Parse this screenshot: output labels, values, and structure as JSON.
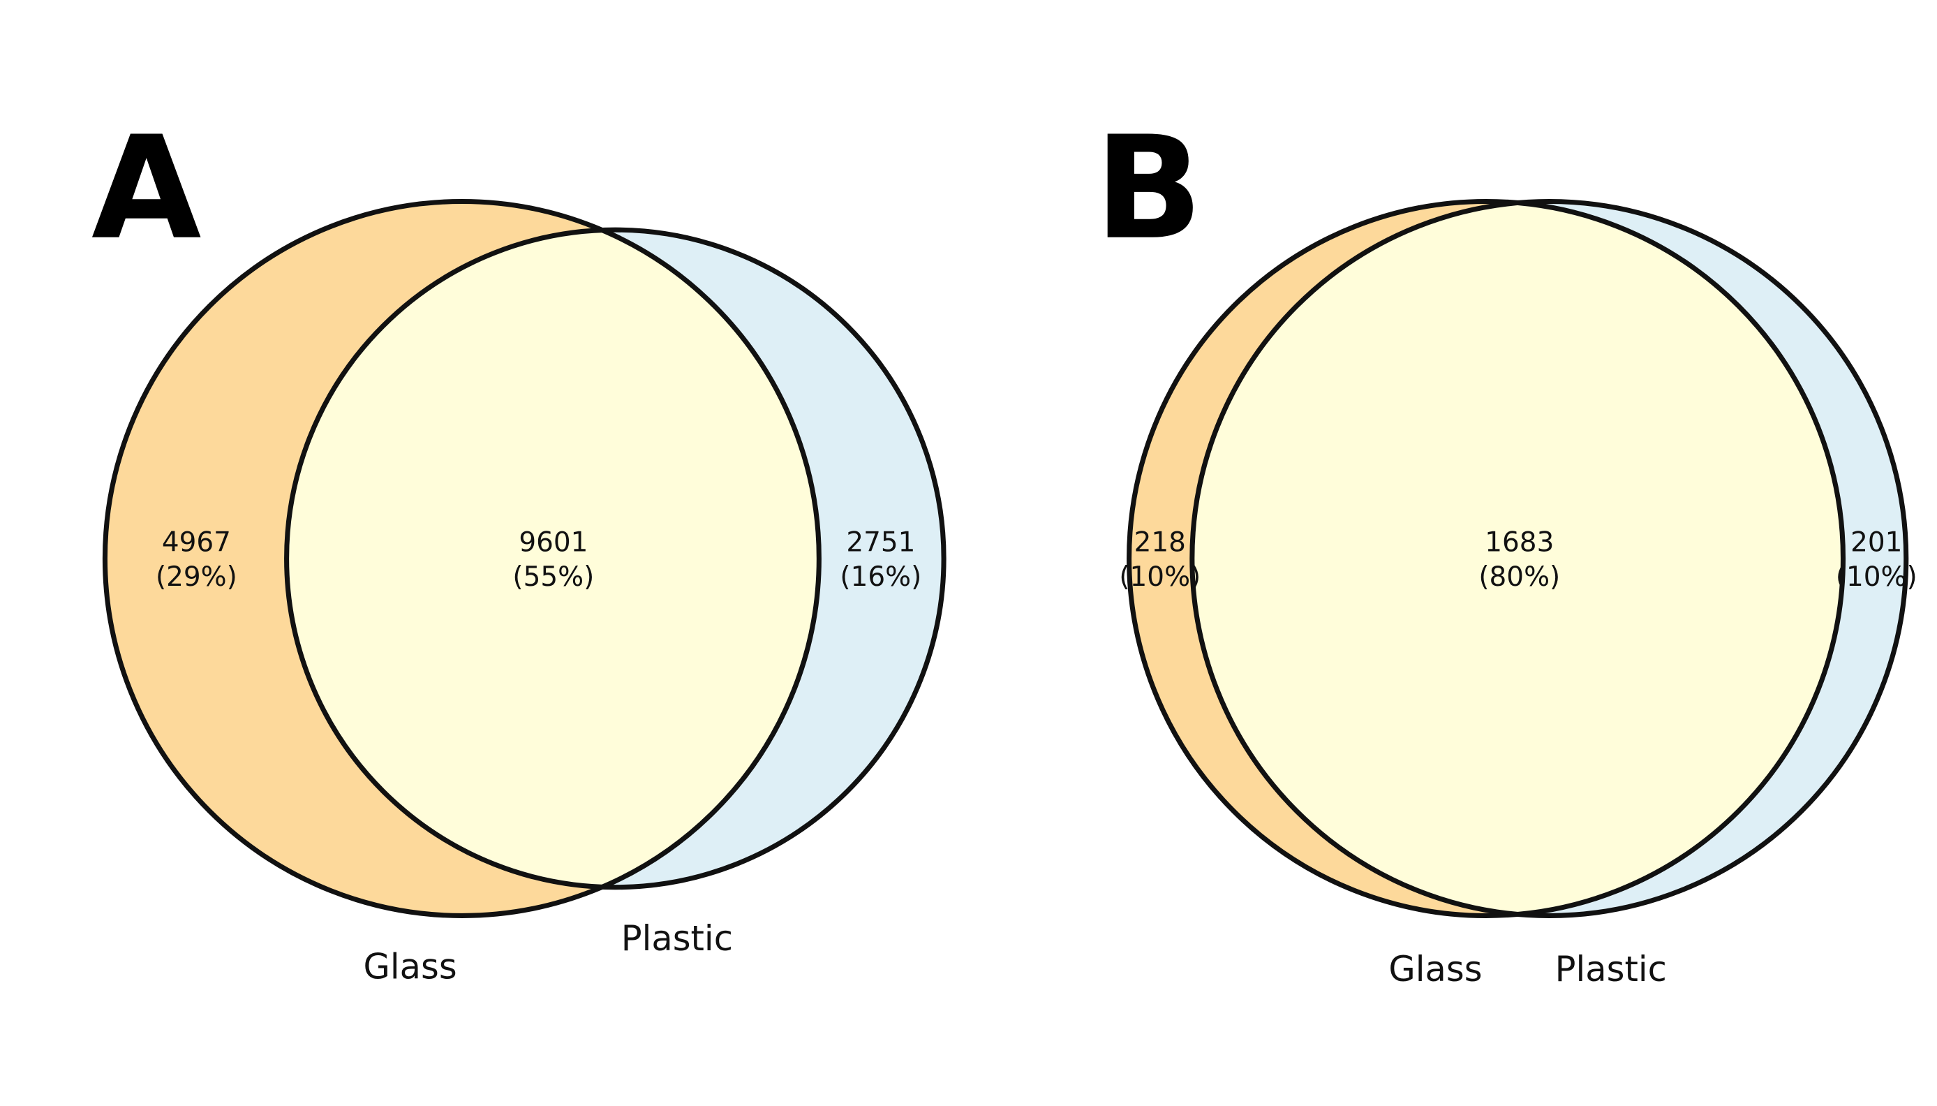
{
  "colors": {
    "glass_only": "#FDD99B",
    "plastic_only": "#DEEFF6",
    "overlap": "#FFFDDA",
    "outline": "#111111",
    "background": "#FFFFFF"
  },
  "panels": [
    {
      "letter": "A",
      "sets": [
        "Glass",
        "Plastic"
      ],
      "regions": {
        "glass_only": {
          "count": "4967",
          "percent": "(29%)"
        },
        "overlap": {
          "count": "9601",
          "percent": "(55%)"
        },
        "plastic_only": {
          "count": "2751",
          "percent": "(16%)"
        }
      }
    },
    {
      "letter": "B",
      "sets": [
        "Glass",
        "Plastic"
      ],
      "regions": {
        "glass_only": {
          "count": "218",
          "percent": "(10%)"
        },
        "overlap": {
          "count": "1683",
          "percent": "(80%)"
        },
        "plastic_only": {
          "count": "201",
          "percent": "(10%)"
        }
      }
    }
  ]
}
